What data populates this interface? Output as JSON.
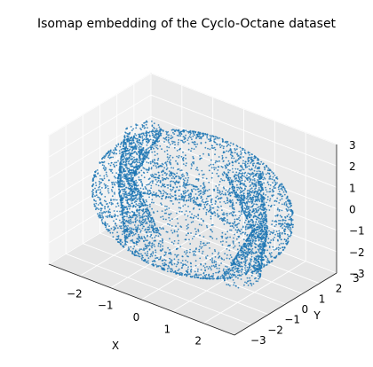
{
  "chart_data": {
    "type": "scatter",
    "title": "Isomap embedding of the Cyclo-Octane dataset",
    "xlabel": "X",
    "ylabel": "Y",
    "zlabel": "",
    "xlim": [
      -3,
      3
    ],
    "ylim": [
      -3,
      3
    ],
    "zlim": [
      -3,
      3
    ],
    "xticks": [
      "−2",
      "−1",
      "0",
      "1",
      "2"
    ],
    "yticks": [
      "−3",
      "−2",
      "−1",
      "0",
      "1",
      "2",
      "3"
    ],
    "zticks": [
      "−3",
      "−2",
      "−1",
      "0",
      "1",
      "2",
      "3"
    ],
    "grid": true,
    "projection": "3d",
    "point_color": "#1f77b4",
    "series": [
      {
        "shape": "sphere with two self-intersecting rings",
        "sphere_radius": 3,
        "approx_point_count": 6000
      }
    ]
  }
}
